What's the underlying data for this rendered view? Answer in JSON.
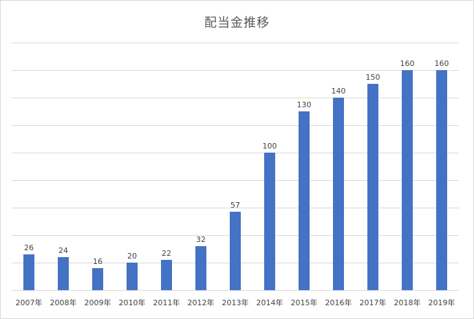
{
  "chart_data": {
    "type": "bar",
    "title": "配当金推移",
    "categories": [
      "2007年",
      "2008年",
      "2009年",
      "2010年",
      "2011年",
      "2012年",
      "2013年",
      "2014年",
      "2015年",
      "2016年",
      "2017年",
      "2018年",
      "2019年"
    ],
    "values": [
      26,
      24,
      16,
      20,
      22,
      32,
      57,
      100,
      130,
      140,
      150,
      160,
      160
    ],
    "ylim": [
      0,
      180
    ],
    "xlabel": "",
    "ylabel": "",
    "grid": true,
    "data_labels": true,
    "colors": {
      "bar": "#4472c4",
      "grid": "#d9d9d9"
    }
  }
}
